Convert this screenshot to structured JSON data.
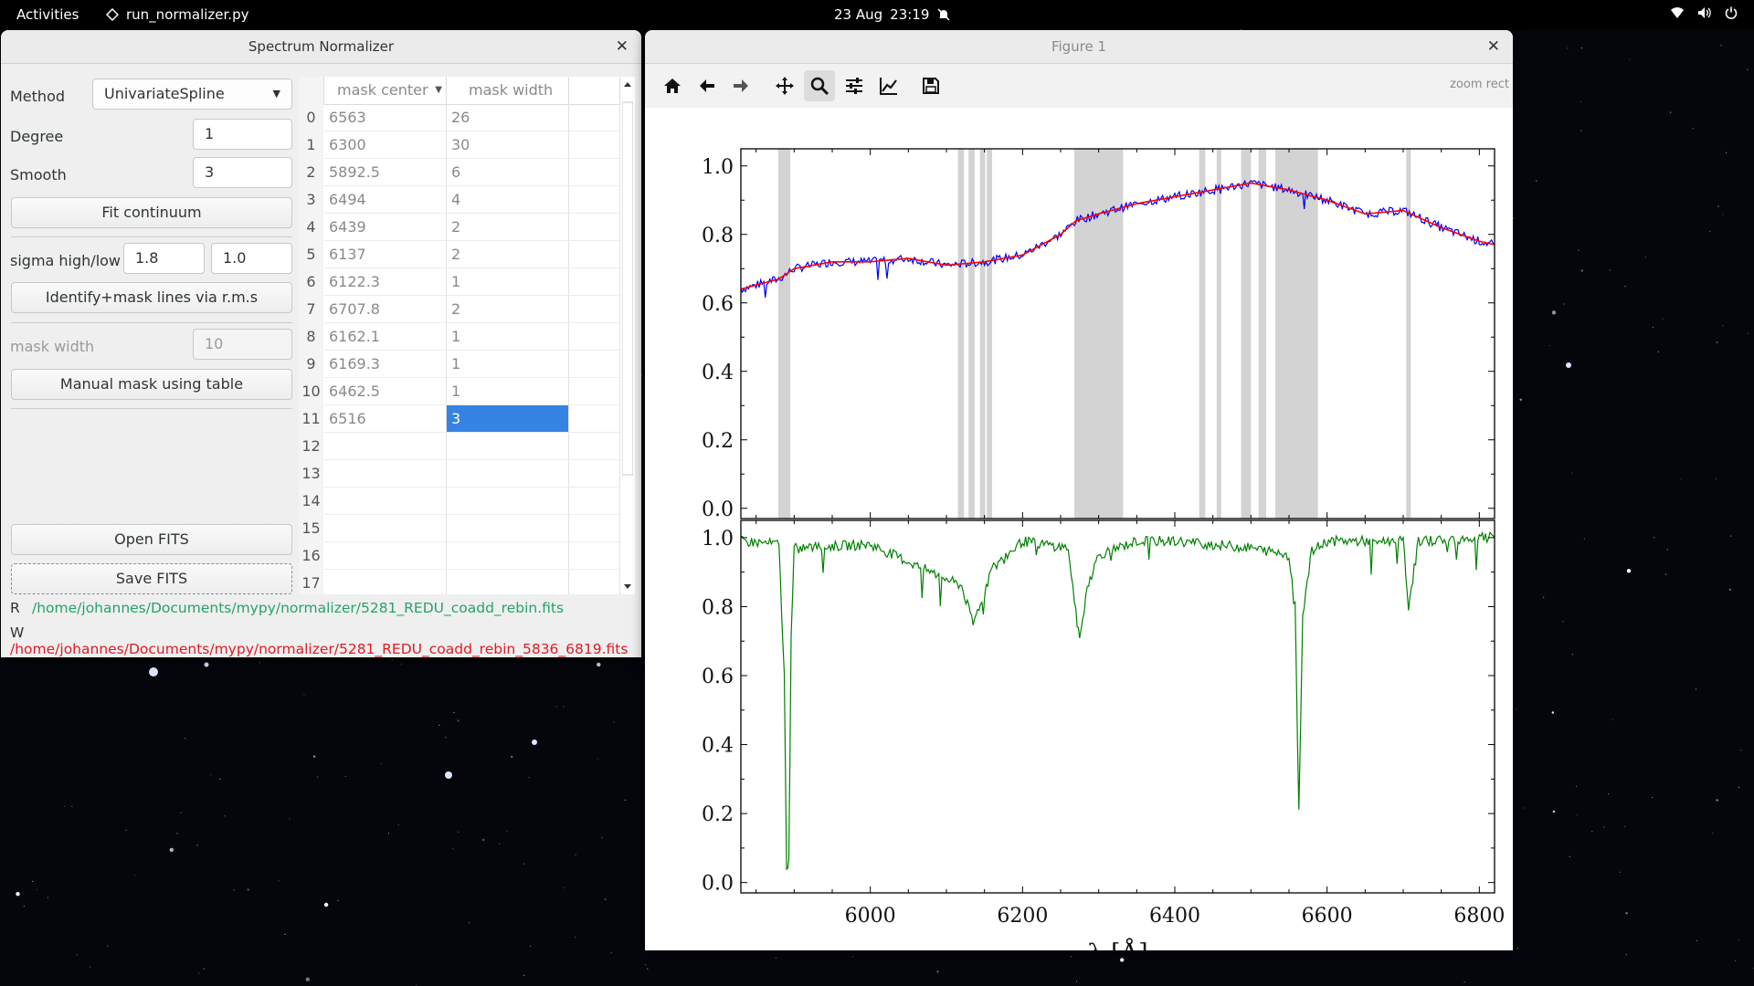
{
  "topbar": {
    "activities": "Activities",
    "app_name": "run_normalizer.py",
    "date": "23 Aug",
    "time": "23:19",
    "tray_icons": [
      "wifi-icon",
      "volume-icon",
      "power-icon"
    ]
  },
  "normalizer": {
    "title": "Spectrum Normalizer",
    "method_label": "Method",
    "method_value": "UnivariateSpline",
    "degree_label": "Degree",
    "degree_value": "1",
    "smooth_label": "Smooth",
    "smooth_value": "3",
    "fit_button": "Fit continuum",
    "sigma_label": "sigma high/low",
    "sigma_high": "1.8",
    "sigma_low": "1.0",
    "identify_button": "Identify+mask lines via r.m.s",
    "mask_width_label": "mask width",
    "mask_width_value": "10",
    "manual_button": "Manual mask using table",
    "open_button": "Open FITS",
    "save_button": "Save FITS",
    "read_prefix": "R",
    "read_path": "/home/johannes/Documents/mypy/normalizer/5281_REDU_coadd_rebin.fits",
    "write_prefix": "W",
    "write_path": "/home/johannes/Documents/mypy/normalizer/5281_REDU_coadd_rebin_5836_6819.fits",
    "table": {
      "headers": [
        "mask center",
        "mask width"
      ],
      "rows": [
        [
          "0",
          "6563",
          "26"
        ],
        [
          "1",
          "6300",
          "30"
        ],
        [
          "2",
          "5892.5",
          "6"
        ],
        [
          "3",
          "6494",
          "4"
        ],
        [
          "4",
          "6439",
          "2"
        ],
        [
          "5",
          "6137",
          "2"
        ],
        [
          "6",
          "6122.3",
          "1"
        ],
        [
          "7",
          "6707.8",
          "2"
        ],
        [
          "8",
          "6162.1",
          "1"
        ],
        [
          "9",
          "6169.3",
          "1"
        ],
        [
          "10",
          "6462.5",
          "1"
        ],
        [
          "11",
          "6516",
          "3"
        ],
        [
          "12",
          "",
          ""
        ],
        [
          "13",
          "",
          ""
        ],
        [
          "14",
          "",
          ""
        ],
        [
          "15",
          "",
          ""
        ],
        [
          "16",
          "",
          ""
        ],
        [
          "17",
          "",
          ""
        ]
      ],
      "selected_row": 11
    }
  },
  "figure": {
    "title": "Figure 1",
    "mode": "zoom rect",
    "toolbar": [
      "home-icon",
      "back-icon",
      "forward-icon",
      "pan-icon",
      "zoom-icon",
      "subplots-icon",
      "customize-icon",
      "save-icon"
    ],
    "colors": {
      "spectrum": "#0000ff",
      "continuum": "#ff0000",
      "normalized": "#008000",
      "mask": "#d3d3d3"
    }
  },
  "chart_data": [
    {
      "type": "line",
      "title": "",
      "xlabel": "",
      "ylabel": "",
      "xlim": [
        5830,
        6820
      ],
      "ylim": [
        -0.03,
        1.05
      ],
      "yticks": [
        "0.0",
        "0.2",
        "0.4",
        "0.6",
        "0.8",
        "1.0"
      ],
      "series": [
        {
          "name": "",
          "color": "#0000ff",
          "x": [
            5830,
            5880,
            5900,
            5950,
            6000,
            6050,
            6100,
            6150,
            6200,
            6250,
            6270,
            6300,
            6350,
            6400,
            6450,
            6500,
            6550,
            6600,
            6650,
            6700,
            6750,
            6800,
            6820
          ],
          "y": [
            0.64,
            0.67,
            0.7,
            0.72,
            0.72,
            0.73,
            0.71,
            0.72,
            0.74,
            0.8,
            0.84,
            0.86,
            0.89,
            0.91,
            0.93,
            0.95,
            0.93,
            0.9,
            0.86,
            0.87,
            0.82,
            0.78,
            0.77
          ]
        },
        {
          "name": "",
          "color": "#ff0000",
          "x": [
            5830,
            5880,
            5900,
            5950,
            6000,
            6050,
            6100,
            6150,
            6200,
            6250,
            6270,
            6300,
            6350,
            6400,
            6450,
            6500,
            6550,
            6600,
            6650,
            6700,
            6750,
            6800,
            6820
          ],
          "y": [
            0.64,
            0.67,
            0.7,
            0.72,
            0.72,
            0.73,
            0.71,
            0.72,
            0.74,
            0.8,
            0.84,
            0.86,
            0.89,
            0.91,
            0.93,
            0.95,
            0.93,
            0.9,
            0.86,
            0.87,
            0.82,
            0.78,
            0.77
          ]
        }
      ],
      "mask_regions": [
        [
          5879,
          5895
        ],
        [
          6115,
          6123
        ],
        [
          6129,
          6137
        ],
        [
          6144,
          6151
        ],
        [
          6153,
          6160
        ],
        [
          6268,
          6332
        ],
        [
          6432,
          6440
        ],
        [
          6455,
          6461
        ],
        [
          6487,
          6500
        ],
        [
          6510,
          6520
        ],
        [
          6532,
          6588
        ],
        [
          6704,
          6710
        ]
      ]
    },
    {
      "type": "line",
      "title": "",
      "xlabel": "λ [Å]",
      "ylabel": "",
      "xlim": [
        5830,
        6820
      ],
      "ylim": [
        -0.03,
        1.05
      ],
      "xticks": [
        "6000",
        "6200",
        "6400",
        "6600",
        "6800"
      ],
      "yticks": [
        "0.0",
        "0.2",
        "0.4",
        "0.6",
        "0.8",
        "1.0"
      ],
      "series": [
        {
          "name": "",
          "color": "#008000",
          "x": [
            5830,
            5880,
            5887,
            5890,
            5893,
            5896,
            5900,
            6000,
            6120,
            6135,
            6160,
            6200,
            6260,
            6270,
            6275,
            6285,
            6300,
            6350,
            6400,
            6450,
            6500,
            6550,
            6558,
            6563,
            6568,
            6580,
            6600,
            6700,
            6707,
            6720,
            6800,
            6820
          ],
          "y": [
            0.99,
            0.98,
            0.6,
            0.03,
            0.08,
            0.7,
            0.97,
            0.98,
            0.86,
            0.75,
            0.91,
            0.99,
            0.97,
            0.78,
            0.7,
            0.86,
            0.95,
            0.99,
            0.99,
            0.98,
            0.97,
            0.95,
            0.8,
            0.21,
            0.78,
            0.96,
            0.99,
            0.99,
            0.8,
            0.99,
            1.0,
            1.0
          ]
        }
      ]
    }
  ]
}
